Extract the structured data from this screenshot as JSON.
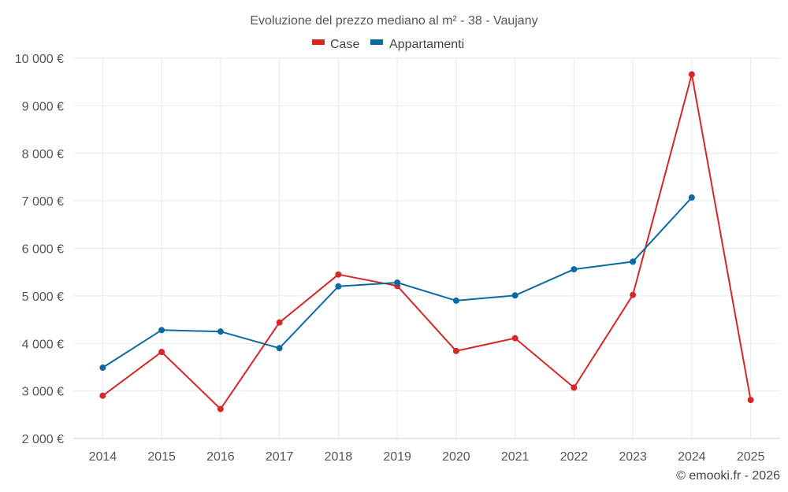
{
  "chart_data": {
    "type": "line",
    "title": "Evoluzione del prezzo mediano al m² - 38 - Vaujany",
    "categories": [
      "2014",
      "2015",
      "2016",
      "2017",
      "2018",
      "2019",
      "2020",
      "2021",
      "2022",
      "2023",
      "2024",
      "2025"
    ],
    "series": [
      {
        "name": "Case",
        "color": "#d62728",
        "values": [
          2900,
          3820,
          2620,
          4440,
          5450,
          5210,
          3840,
          4110,
          3070,
          5020,
          9660,
          2810
        ]
      },
      {
        "name": "Appartamenti",
        "color": "#0b6aa2",
        "values": [
          3490,
          4280,
          4250,
          3900,
          5200,
          5280,
          4900,
          5010,
          5560,
          5720,
          7070,
          null
        ]
      }
    ],
    "ylim": [
      2000,
      10000
    ],
    "yticks": [
      2000,
      3000,
      4000,
      5000,
      6000,
      7000,
      8000,
      9000,
      10000
    ],
    "ytick_labels": [
      "2 000 €",
      "3 000 €",
      "4 000 €",
      "5 000 €",
      "6 000 €",
      "7 000 €",
      "8 000 €",
      "9 000 €",
      "10 000 €"
    ],
    "xlabel": "",
    "ylabel": "",
    "legend_position": "top-center",
    "grid": true
  },
  "credit": "© emooki.fr - 2026"
}
